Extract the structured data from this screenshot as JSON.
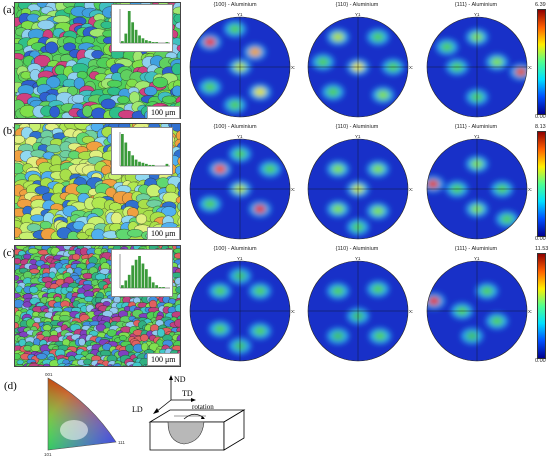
{
  "rows": [
    {
      "label": "(a)",
      "scale": "100 μm",
      "pole_figures": [
        "{100} - Aluminium",
        "{110} - Aluminium",
        "{111} - Aluminium"
      ],
      "colorbar_max": "6.39",
      "colorbar_min": "0.00",
      "axis_y": "Y1",
      "axis_x": "X1"
    },
    {
      "label": "(b)",
      "scale": "100 μm",
      "pole_figures": [
        "{100} - Aluminium",
        "{110} - Aluminium",
        "{111} - Aluminium"
      ],
      "colorbar_max": "8.13",
      "colorbar_min": "0.00",
      "axis_y": "Y1",
      "axis_x": "X1"
    },
    {
      "label": "(c)",
      "scale": "100 μm",
      "pole_figures": [
        "{100} - Aluminium",
        "{110} - Aluminium",
        "{111} - Aluminium"
      ],
      "colorbar_max": "11.53",
      "colorbar_min": "0.00",
      "axis_y": "Y1",
      "axis_x": "X1"
    }
  ],
  "legend": {
    "label": "(d)",
    "ipf_corners": [
      "001",
      "101",
      "111"
    ],
    "nd": "ND",
    "td": "TD",
    "ld": "LD",
    "rotation": "rotation"
  },
  "colors": {
    "pf_low": "#1a2fd0",
    "pf_mid": "#3fd23f",
    "pf_high": "#e0201a"
  }
}
